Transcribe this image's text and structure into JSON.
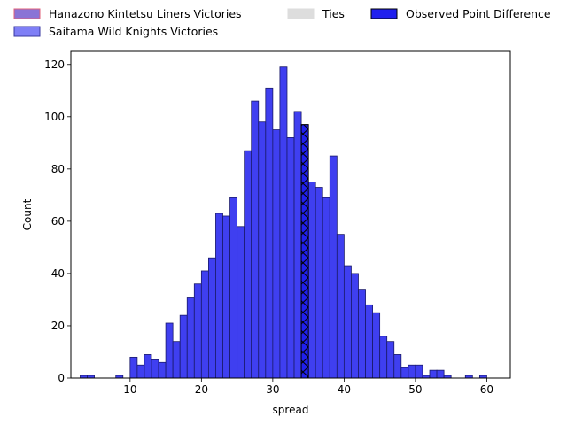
{
  "chart_data": {
    "type": "bar",
    "title": "",
    "xlabel": "spread",
    "ylabel": "Count",
    "xlim": [
      1.7,
      63.3
    ],
    "ylim": [
      0,
      125
    ],
    "grid": false,
    "legend_placement": "top",
    "xticks": [
      10,
      20,
      30,
      40,
      50,
      60
    ],
    "yticks": [
      0,
      20,
      40,
      60,
      80,
      100,
      120
    ],
    "bin_width": 1,
    "bins": [
      {
        "x": 3.5,
        "count": 1
      },
      {
        "x": 4.5,
        "count": 1
      },
      {
        "x": 8.5,
        "count": 1
      },
      {
        "x": 10.5,
        "count": 8
      },
      {
        "x": 11.5,
        "count": 5
      },
      {
        "x": 12.5,
        "count": 9
      },
      {
        "x": 13.5,
        "count": 7
      },
      {
        "x": 14.5,
        "count": 6
      },
      {
        "x": 15.5,
        "count": 21
      },
      {
        "x": 16.5,
        "count": 14
      },
      {
        "x": 17.5,
        "count": 24
      },
      {
        "x": 18.5,
        "count": 31
      },
      {
        "x": 19.5,
        "count": 36
      },
      {
        "x": 20.5,
        "count": 41
      },
      {
        "x": 21.5,
        "count": 46
      },
      {
        "x": 22.5,
        "count": 63
      },
      {
        "x": 23.5,
        "count": 62
      },
      {
        "x": 24.5,
        "count": 69
      },
      {
        "x": 25.5,
        "count": 58
      },
      {
        "x": 26.5,
        "count": 87
      },
      {
        "x": 27.5,
        "count": 106
      },
      {
        "x": 28.5,
        "count": 98
      },
      {
        "x": 29.5,
        "count": 111
      },
      {
        "x": 30.5,
        "count": 95
      },
      {
        "x": 31.5,
        "count": 119
      },
      {
        "x": 32.5,
        "count": 92
      },
      {
        "x": 33.5,
        "count": 102
      },
      {
        "x": 34.5,
        "count": 97
      },
      {
        "x": 35.5,
        "count": 75
      },
      {
        "x": 36.5,
        "count": 73
      },
      {
        "x": 37.5,
        "count": 69
      },
      {
        "x": 38.5,
        "count": 85
      },
      {
        "x": 39.5,
        "count": 55
      },
      {
        "x": 40.5,
        "count": 43
      },
      {
        "x": 41.5,
        "count": 40
      },
      {
        "x": 42.5,
        "count": 34
      },
      {
        "x": 43.5,
        "count": 28
      },
      {
        "x": 44.5,
        "count": 25
      },
      {
        "x": 45.5,
        "count": 16
      },
      {
        "x": 46.5,
        "count": 14
      },
      {
        "x": 47.5,
        "count": 9
      },
      {
        "x": 48.5,
        "count": 4
      },
      {
        "x": 49.5,
        "count": 5
      },
      {
        "x": 50.5,
        "count": 5
      },
      {
        "x": 51.5,
        "count": 1
      },
      {
        "x": 52.5,
        "count": 3
      },
      {
        "x": 53.5,
        "count": 3
      },
      {
        "x": 54.5,
        "count": 1
      },
      {
        "x": 57.5,
        "count": 1
      },
      {
        "x": 59.5,
        "count": 1
      }
    ],
    "observed_point_difference": {
      "x_start": 34,
      "x_end": 35,
      "count": 97
    },
    "series": [
      {
        "name": "Hanazono Kintetsu Liners Victories",
        "color": "#8a74d6",
        "edge": "#e0607a"
      },
      {
        "name": "Saitama Wild Knights Victories",
        "color": "#7f7ff6",
        "edge": "#3a3aa0"
      },
      {
        "name": "Ties",
        "color": "#dddddd",
        "edge": "#dddddd"
      },
      {
        "name": "Observed Point Difference",
        "color": "#2020ee",
        "edge": "#000000"
      }
    ],
    "bar_color": "#3f3ff0",
    "bar_edge": "#1a1a6a"
  }
}
